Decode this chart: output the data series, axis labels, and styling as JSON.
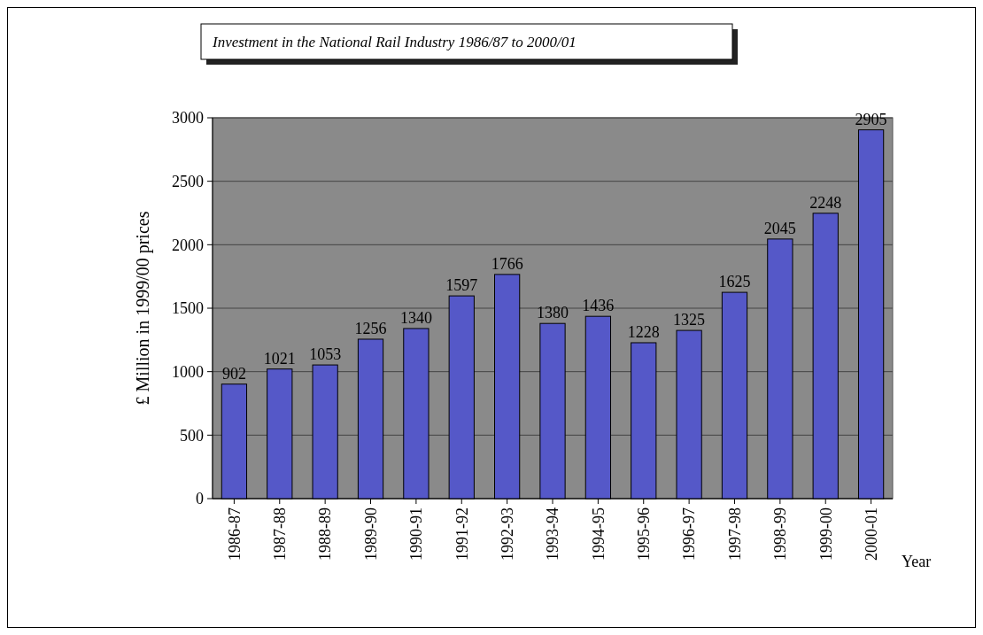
{
  "chart_data": {
    "type": "bar",
    "title": "Investment in the National Rail Industry 1986/87 to 2000/01",
    "xlabel": "Year",
    "ylabel": "£ Million in 1999/00 prices",
    "categories": [
      "1986-87",
      "1987-88",
      "1988-89",
      "1989-90",
      "1990-91",
      "1991-92",
      "1992-93",
      "1993-94",
      "1994-95",
      "1995-96",
      "1996-97",
      "1997-98",
      "1998-99",
      "1999-00",
      "2000-01"
    ],
    "values": [
      902,
      1021,
      1053,
      1256,
      1340,
      1597,
      1766,
      1380,
      1436,
      1228,
      1325,
      1625,
      2045,
      2248,
      2905
    ],
    "color": "#5558c8",
    "ylim": [
      0,
      3000
    ],
    "yticks": [
      0,
      500,
      1000,
      1500,
      2000,
      2500,
      3000
    ],
    "grid": "y",
    "data_labels": true
  }
}
